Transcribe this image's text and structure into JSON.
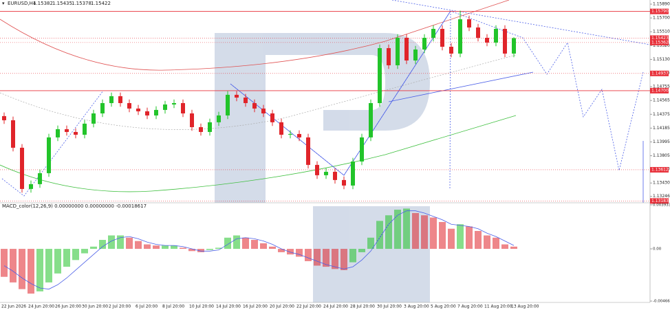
{
  "chart_data": {
    "type": "candlestick",
    "title": "EURUSD,H4",
    "quote": {
      "open": 1.15382,
      "high": 1.15435,
      "low": 1.15378,
      "close": 1.15422
    },
    "up_color": "#22c42a",
    "down_color": "#e0242a",
    "ylim": [
      1.13158,
      1.15947
    ],
    "yticks": [
      {
        "value": 1.1589,
        "label": "1.15890"
      },
      {
        "value": 1.157,
        "label": "1.15700"
      },
      {
        "value": 1.1551,
        "label": "1.15510"
      },
      {
        "value": 1.1532,
        "label": "1.15320"
      },
      {
        "value": 1.1513,
        "label": "1.15130"
      },
      {
        "value": 1.14945,
        "label": "1.14945"
      },
      {
        "value": 1.14755,
        "label": "1.14755"
      },
      {
        "value": 1.14565,
        "label": "1.14565"
      },
      {
        "value": 1.14375,
        "label": "1.14375"
      },
      {
        "value": 1.14185,
        "label": "1.14185"
      },
      {
        "value": 1.13995,
        "label": "1.13995"
      },
      {
        "value": 1.13805,
        "label": "1.13805"
      },
      {
        "value": 1.1362,
        "label": "1.13620"
      },
      {
        "value": 1.1343,
        "label": "1.13430"
      },
      {
        "value": 1.13246,
        "label": "1.13246"
      }
    ],
    "levels": [
      {
        "value": 1.1579,
        "label": "1.15790",
        "style": "solid"
      },
      {
        "value": 1.15423,
        "label": "1.15423",
        "style": "dotted"
      },
      {
        "value": 1.15362,
        "label": "1.15362",
        "style": "dotted"
      },
      {
        "value": 1.14937,
        "label": "1.14937",
        "style": "dotted"
      },
      {
        "value": 1.147,
        "label": "1.14700",
        "style": "solid"
      },
      {
        "value": 1.13612,
        "label": "1.13612",
        "style": "dotted"
      },
      {
        "value": 1.13183,
        "label": "1.13183",
        "style": "dotted"
      }
    ],
    "candles": [
      [
        1.1435,
        1.144,
        1.14243,
        1.14293
      ],
      [
        1.14293,
        1.14343,
        1.13865,
        1.13915
      ],
      [
        1.13915,
        1.13965,
        1.13298,
        1.13348
      ],
      [
        1.13348,
        1.13464,
        1.13298,
        1.13414
      ],
      [
        1.13414,
        1.13615,
        1.13364,
        1.13565
      ],
      [
        1.13565,
        1.14107,
        1.13515,
        1.14057
      ],
      [
        1.14057,
        1.1422,
        1.14007,
        1.1417
      ],
      [
        1.1417,
        1.1422,
        1.14082,
        1.14132
      ],
      [
        1.14132,
        1.14182,
        1.14044,
        1.14094
      ],
      [
        1.14094,
        1.14296,
        1.14044,
        1.14246
      ],
      [
        1.14246,
        1.14437,
        1.14196,
        1.14387
      ],
      [
        1.14387,
        1.14579,
        1.14337,
        1.14529
      ],
      [
        1.14529,
        1.14674,
        1.14479,
        1.14624
      ],
      [
        1.14624,
        1.14674,
        1.14479,
        1.14529
      ],
      [
        1.14529,
        1.14579,
        1.14404,
        1.14454
      ],
      [
        1.14454,
        1.14504,
        1.14366,
        1.14416
      ],
      [
        1.14416,
        1.14466,
        1.14309,
        1.14359
      ],
      [
        1.14359,
        1.14485,
        1.14309,
        1.14435
      ],
      [
        1.14435,
        1.1456,
        1.14385,
        1.1451
      ],
      [
        1.1451,
        1.14579,
        1.1446,
        1.14529
      ],
      [
        1.14529,
        1.14579,
        1.14337,
        1.14387
      ],
      [
        1.14387,
        1.14437,
        1.14148,
        1.14198
      ],
      [
        1.14198,
        1.14248,
        1.14082,
        1.14132
      ],
      [
        1.14132,
        1.14315,
        1.14082,
        1.14265
      ],
      [
        1.14265,
        1.14409,
        1.14215,
        1.14359
      ],
      [
        1.14359,
        1.14693,
        1.14309,
        1.14643
      ],
      [
        1.14643,
        1.14693,
        1.14555,
        1.14605
      ],
      [
        1.14605,
        1.14655,
        1.14479,
        1.14529
      ],
      [
        1.14529,
        1.14579,
        1.14404,
        1.14454
      ],
      [
        1.14454,
        1.14504,
        1.14337,
        1.14387
      ],
      [
        1.14387,
        1.14437,
        1.14215,
        1.14265
      ],
      [
        1.14265,
        1.14315,
        1.14044,
        1.14094
      ],
      [
        1.14094,
        1.14154,
        1.14044,
        1.14104
      ],
      [
        1.14104,
        1.14154,
        1.14007,
        1.14057
      ],
      [
        1.14057,
        1.14107,
        1.13629,
        1.13679
      ],
      [
        1.13679,
        1.13729,
        1.13487,
        1.13537
      ],
      [
        1.13537,
        1.13634,
        1.13487,
        1.13584
      ],
      [
        1.13584,
        1.13634,
        1.13421,
        1.13471
      ],
      [
        1.13471,
        1.13521,
        1.13345,
        1.13395
      ],
      [
        1.13395,
        1.13776,
        1.13345,
        1.13726
      ],
      [
        1.13726,
        1.14107,
        1.13676,
        1.14057
      ],
      [
        1.14057,
        1.14579,
        1.14007,
        1.14529
      ],
      [
        1.14529,
        1.15335,
        1.14479,
        1.15285
      ],
      [
        1.15285,
        1.15335,
        1.14999,
        1.15049
      ],
      [
        1.15049,
        1.15477,
        1.14999,
        1.15427
      ],
      [
        1.15427,
        1.15477,
        1.15065,
        1.15115
      ],
      [
        1.15115,
        1.15316,
        1.15065,
        1.15266
      ],
      [
        1.15266,
        1.15477,
        1.15216,
        1.15427
      ],
      [
        1.15427,
        1.156,
        1.15377,
        1.1555
      ],
      [
        1.1555,
        1.156,
        1.15254,
        1.15304
      ],
      [
        1.15304,
        1.15354,
        1.1516,
        1.1521
      ],
      [
        1.1521,
        1.158,
        1.1516,
        1.15682
      ],
      [
        1.15682,
        1.15732,
        1.15519,
        1.15569
      ],
      [
        1.15569,
        1.15619,
        1.15377,
        1.15427
      ],
      [
        1.15427,
        1.15477,
        1.15311,
        1.15361
      ],
      [
        1.15361,
        1.156,
        1.15311,
        1.1555
      ],
      [
        1.1555,
        1.156,
        1.1516,
        1.1521
      ],
      [
        1.1521,
        1.15435,
        1.1516,
        1.15422
      ]
    ],
    "x_labels": [
      "22 Jun 2026",
      "24 Jun 20:00",
      "26 Jun 20:00",
      "30 Jun 20:00",
      "2 Jul 20:00",
      "6 Jul 20:00",
      "8 Jul 20:00",
      "10 Jul 20:00",
      "14 Jul 20:00",
      "16 Jul 20:00",
      "20 Jul 20:00",
      "22 Jul 20:00",
      "24 Jul 20:00",
      "28 Jul 20:00",
      "30 Jul 20:00",
      "3 Aug 20:00",
      "5 Aug 20:00",
      "7 Aug 20:00",
      "11 Aug 20:00",
      "13 Aug 20:00"
    ],
    "macd": {
      "label": "MACD_color(12,26,9) 0.00000000 0.00000000 -0.00018617",
      "ylim": [
        -0.0046654,
        0.0039338
      ],
      "yticks": [
        0.0039338,
        {
          "value": 0,
          "label": "0.00"
        },
        -0.0046654
      ],
      "signal_color": "#4a5ee8",
      "histogram": [
        -0.0025,
        -0.003,
        -0.0036,
        -0.004,
        -0.0038,
        -0.003,
        -0.0022,
        -0.0016,
        -0.001,
        -0.0004,
        0.0002,
        0.0008,
        0.0012,
        0.0012,
        0.001,
        0.0007,
        0.0004,
        0.0003,
        0.0003,
        0.0003,
        0.0001,
        -0.0002,
        -0.0003,
        -0.0001,
        0.0001,
        0.001,
        0.0012,
        0.001,
        0.0008,
        0.0005,
        0.0002,
        -0.0003,
        -0.0005,
        -0.0007,
        -0.0011,
        -0.0015,
        -0.0016,
        -0.0018,
        -0.0019,
        -0.0012,
        -0.0003,
        0.001,
        0.0025,
        0.003,
        0.0035,
        0.0036,
        0.0032,
        0.003,
        0.0028,
        0.0024,
        0.0018,
        0.0022,
        0.002,
        0.0016,
        0.0012,
        0.001,
        0.0004,
        0.0002
      ],
      "signal": [
        -0.0015,
        -0.002,
        -0.0026,
        -0.0031,
        -0.0035,
        -0.0036,
        -0.0032,
        -0.0026,
        -0.0019,
        -0.0012,
        -0.0005,
        0.0002,
        0.0007,
        0.001,
        0.0011,
        0.0009,
        0.0006,
        0.0004,
        0.0003,
        0.0003,
        0.0002,
        0,
        -0.0002,
        -0.0002,
        -0.0001,
        0.0004,
        0.0009,
        0.001,
        0.0009,
        0.0007,
        0.0004,
        0,
        -0.0003,
        -0.0005,
        -0.0008,
        -0.0011,
        -0.0014,
        -0.0016,
        -0.0018,
        -0.0016,
        -0.001,
        -0.0002,
        0.001,
        0.0022,
        0.003,
        0.0034,
        0.0034,
        0.0032,
        0.0029,
        0.0026,
        0.0022,
        0.0021,
        0.002,
        0.0018,
        0.0014,
        0.0011,
        0.0007,
        0.0003
      ]
    }
  }
}
